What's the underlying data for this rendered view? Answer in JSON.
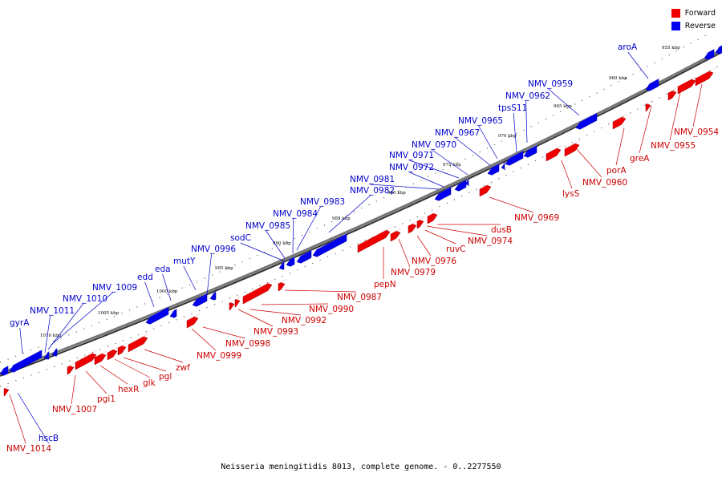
{
  "caption": "Neisseria meningitidis 8013, complete genome. - 0..2277550",
  "legend": [
    {
      "label": "Forward",
      "color": "#ee0000"
    },
    {
      "label": "Reverse",
      "color": "#0000ee"
    }
  ],
  "colors": {
    "forward": "#ee0000",
    "reverse": "#0000ee",
    "forward_label": "#cc0000",
    "reverse_label": "#0000cc",
    "backbone": "#777777"
  },
  "ticks": [
    "955 kbp",
    "960 kbp",
    "965 kbp",
    "970 kbp",
    "975 kbp",
    "980 kbp",
    "985 kbp",
    "990 kbp",
    "995 kbp",
    "1000 kbp",
    "1005 kbp",
    "1010 kbp"
  ],
  "forward_labels": [
    "NMV_0954",
    "NMV_0955",
    "greA",
    "porA",
    "NMV_0960",
    "lysS",
    "NMV_0969",
    "dusB",
    "NMV_0974",
    "ruvC",
    "NMV_0976",
    "NMV_0979",
    "pepN",
    "NMV_0987",
    "NMV_0990",
    "NMV_0992",
    "NMV_0993",
    "NMV_0998",
    "NMV_0999",
    "zwf",
    "pgl",
    "glk",
    "hexR",
    "pgi1",
    "NMV_1007",
    "NMV_1014"
  ],
  "reverse_labels": [
    "aroA",
    "NMV_0959",
    "NMV_0962",
    "tpsS11",
    "NMV_0965",
    "NMV_0967",
    "NMV_0970",
    "NMV_0971",
    "NMV_0972",
    "NMV_0981",
    "NMV_0982",
    "NMV_0983",
    "NMV_0984",
    "NMV_0985",
    "sodC",
    "NMV_0996",
    "mutY",
    "eda",
    "edd",
    "NMV_1009",
    "NMV_1010",
    "NMV_1011",
    "gyrA",
    "hscB"
  ]
}
